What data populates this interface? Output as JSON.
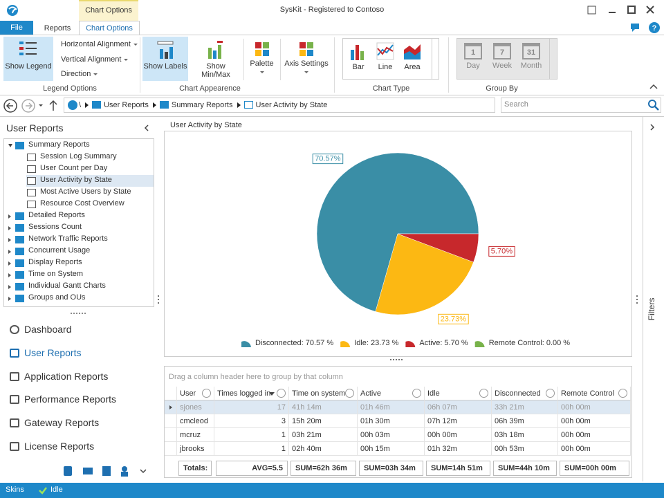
{
  "window": {
    "context_group": "Chart Options",
    "title": "SysKit - Registered to Contoso"
  },
  "tabs": [
    "File",
    "Reports",
    "Chart Options"
  ],
  "ribbon": {
    "legend": {
      "show_legend": "Show Legend",
      "items": [
        "Horizontal Alignment",
        "Vertical Alignment",
        "Direction"
      ],
      "group": "Legend Options"
    },
    "appearance": {
      "buttons": [
        "Show Labels",
        "Show Min/Max",
        "Palette",
        "Axis Settings"
      ],
      "group": "Chart Appearence"
    },
    "chart_type": {
      "buttons": [
        "Bar",
        "Line",
        "Area"
      ],
      "group": "Chart Type"
    },
    "group_by": {
      "buttons": [
        {
          "icon": "1",
          "label": "Day"
        },
        {
          "icon": "7",
          "label": "Week"
        },
        {
          "icon": "31",
          "label": "Month"
        }
      ],
      "group": "Group By"
    }
  },
  "breadcrumb": [
    "\\",
    "User Reports",
    "Summary Reports",
    "User Activity by State"
  ],
  "search_placeholder": "Search",
  "sidebar": {
    "title": "User Reports",
    "tree": [
      {
        "label": "Summary Reports",
        "expanded": true,
        "children": [
          {
            "label": "Session Log Summary"
          },
          {
            "label": "User Count per Day"
          },
          {
            "label": "User Activity by State",
            "selected": true
          },
          {
            "label": "Most Active Users by State"
          },
          {
            "label": "Resource Cost Overview"
          }
        ]
      },
      {
        "label": "Detailed Reports"
      },
      {
        "label": "Sessions Count"
      },
      {
        "label": "Network Traffic Reports"
      },
      {
        "label": "Concurrent Usage"
      },
      {
        "label": "Display Reports"
      },
      {
        "label": "Time on System"
      },
      {
        "label": "Individual Gantt Charts"
      },
      {
        "label": "Groups and OUs"
      }
    ],
    "nav": [
      {
        "label": "Dashboard"
      },
      {
        "label": "User Reports",
        "active": true
      },
      {
        "label": "Application Reports"
      },
      {
        "label": "Performance Reports"
      },
      {
        "label": "Gateway Reports"
      },
      {
        "label": "License Reports"
      }
    ]
  },
  "report": {
    "title": "User Activity by State",
    "chart_data": {
      "type": "pie",
      "categories": [
        "Disconnected",
        "Idle",
        "Active",
        "Remote Control"
      ],
      "values": [
        70.57,
        23.73,
        5.7,
        0.0
      ],
      "value_labels": [
        "70.57%",
        "23.73%",
        "5.70%",
        null
      ],
      "legend_labels": [
        "Disconnected: 70.57 %",
        "Idle: 23.73 %",
        "Active: 5.70 %",
        "Remote Control: 0.00 %"
      ],
      "colors": [
        "#3a8ea6",
        "#fcb813",
        "#c7282c",
        "#78b24a"
      ]
    },
    "table": {
      "group_hint": "Drag a column header here to group by that column",
      "columns": [
        "User",
        "Times logged in",
        "Time on system",
        "Active",
        "Idle",
        "Disconnected",
        "Remote Control"
      ],
      "rows": [
        [
          "sjones",
          17,
          "41h 14m",
          "01h 46m",
          "06h 07m",
          "33h 21m",
          "00h 00m"
        ],
        [
          "cmcleod",
          3,
          "15h 20m",
          "01h 30m",
          "07h 12m",
          "06h 39m",
          "00h 00m"
        ],
        [
          "mcruz",
          1,
          "03h 21m",
          "00h 03m",
          "00h 00m",
          "03h 18m",
          "00h 00m"
        ],
        [
          "jbrooks",
          1,
          "02h 40m",
          "00h 15m",
          "01h 32m",
          "00h 53m",
          "00h 00m"
        ]
      ],
      "totals": [
        "Totals:",
        "AVG=5.5",
        "SUM=62h 36m",
        "SUM=03h 34m",
        "SUM=14h 51m",
        "SUM=44h 10m",
        "SUM=00h 00m"
      ]
    }
  },
  "filters": "Filters",
  "status": {
    "skins": "Skins",
    "state": "Idle"
  }
}
